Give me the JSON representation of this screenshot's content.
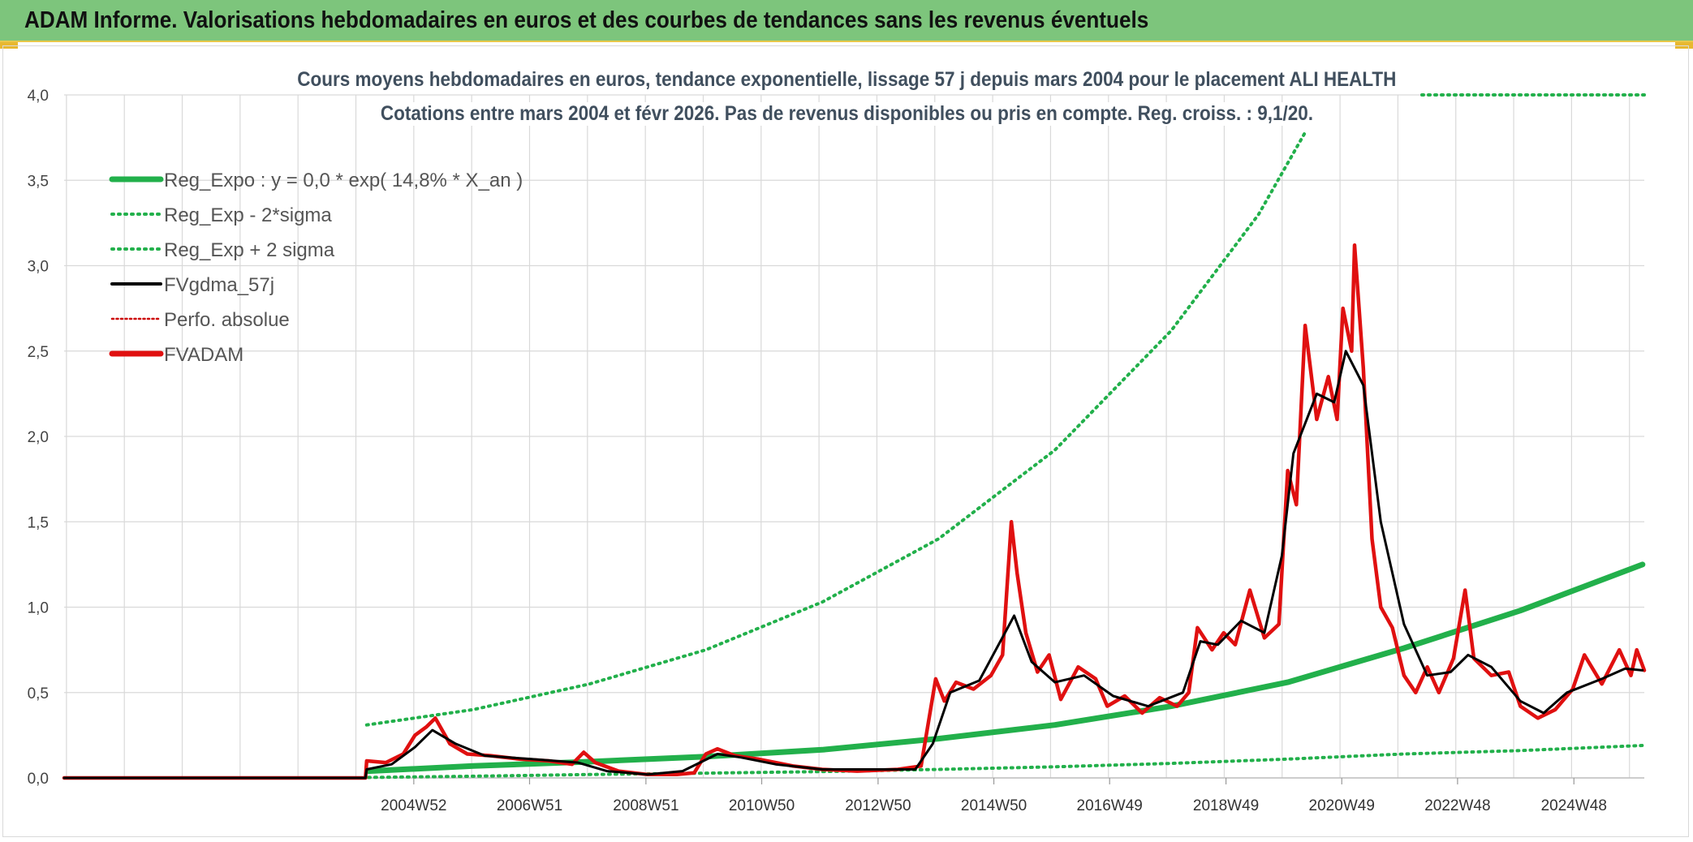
{
  "page_title": "ADAM Informe. Valorisations hebdomadaires en euros et des courbes de tendances sans les revenus éventuels",
  "chart_data": {
    "type": "line",
    "title": "Cours moyens hebdomadaires en euros, tendance exponentielle, lissage 57 j depuis mars 2004 pour le placement ALI HEALTH",
    "subtitle": "Cotations entre mars 2004 et févr 2026. Pas de revenus disponibles ou pris en compte. Reg. croiss. : 9,1/20.",
    "xlabel": "",
    "ylabel": "",
    "x_range": [
      1998.97,
      2026.13
    ],
    "ylim": [
      0,
      4
    ],
    "y_ticks": [
      "0,0",
      "0,5",
      "1,0",
      "1,5",
      "2,0",
      "2,5",
      "3,0",
      "3,5",
      "4,0"
    ],
    "y_tick_values": [
      0,
      0.5,
      1.0,
      1.5,
      2.0,
      2.5,
      3.0,
      3.5,
      4.0
    ],
    "x_ticks": [
      "2004W52",
      "2006W51",
      "2008W51",
      "2010W50",
      "2012W50",
      "2014W50",
      "2016W49",
      "2018W49",
      "2020W49",
      "2022W48",
      "2024W48"
    ],
    "x_tick_years": [
      2004.98,
      2006.97,
      2008.97,
      2010.96,
      2012.96,
      2014.95,
      2016.94,
      2018.94,
      2020.93,
      2022.92,
      2024.92
    ],
    "grid": true,
    "legend_position": "top-left",
    "series": [
      {
        "name": "Reg_Expo : y = 0,0 * exp( 14,8% *  X_an )",
        "color": "#22b04b",
        "style": "solid-thick",
        "points": [
          [
            2004.2,
            0.04
          ],
          [
            2006,
            0.07
          ],
          [
            2008,
            0.095
          ],
          [
            2010,
            0.125
          ],
          [
            2012,
            0.165
          ],
          [
            2014,
            0.23
          ],
          [
            2016,
            0.31
          ],
          [
            2018,
            0.42
          ],
          [
            2020,
            0.56
          ],
          [
            2022,
            0.76
          ],
          [
            2024,
            0.98
          ],
          [
            2026.1,
            1.25
          ]
        ]
      },
      {
        "name": "Reg_Exp - 2*sigma",
        "color": "#22b04b",
        "style": "dotted",
        "points": [
          [
            2004.2,
            0.003
          ],
          [
            2006,
            0.01
          ],
          [
            2008,
            0.02
          ],
          [
            2010,
            0.028
          ],
          [
            2012,
            0.037
          ],
          [
            2014,
            0.05
          ],
          [
            2016,
            0.065
          ],
          [
            2018,
            0.085
          ],
          [
            2020,
            0.11
          ],
          [
            2022,
            0.14
          ],
          [
            2024,
            0.16
          ],
          [
            2026.1,
            0.19
          ]
        ]
      },
      {
        "name": "Reg_Exp + 2 sigma",
        "color": "#22b04b",
        "style": "dotted",
        "points": [
          [
            2004.17,
            0.31
          ],
          [
            2006,
            0.4
          ],
          [
            2008,
            0.55
          ],
          [
            2010,
            0.75
          ],
          [
            2012,
            1.03
          ],
          [
            2014,
            1.4
          ],
          [
            2016,
            1.92
          ],
          [
            2018,
            2.62
          ],
          [
            2019.5,
            3.3
          ],
          [
            2020.3,
            3.78
          ]
        ]
      },
      {
        "name": "FVgdma_57j",
        "color": "#000000",
        "style": "solid",
        "points": [
          [
            1998.97,
            0
          ],
          [
            2004.15,
            0
          ],
          [
            2004.17,
            0.05
          ],
          [
            2004.6,
            0.08
          ],
          [
            2005.0,
            0.18
          ],
          [
            2005.3,
            0.28
          ],
          [
            2005.7,
            0.2
          ],
          [
            2006.2,
            0.13
          ],
          [
            2007,
            0.11
          ],
          [
            2007.8,
            0.09
          ],
          [
            2008.3,
            0.04
          ],
          [
            2009,
            0.02
          ],
          [
            2009.6,
            0.04
          ],
          [
            2010.2,
            0.14
          ],
          [
            2010.6,
            0.12
          ],
          [
            2011.2,
            0.08
          ],
          [
            2012,
            0.05
          ],
          [
            2013.6,
            0.05
          ],
          [
            2013.9,
            0.2
          ],
          [
            2014.2,
            0.5
          ],
          [
            2014.7,
            0.57
          ],
          [
            2015.3,
            0.95
          ],
          [
            2015.6,
            0.68
          ],
          [
            2016.0,
            0.56
          ],
          [
            2016.5,
            0.6
          ],
          [
            2017.0,
            0.48
          ],
          [
            2017.6,
            0.42
          ],
          [
            2018.2,
            0.5
          ],
          [
            2018.5,
            0.8
          ],
          [
            2018.8,
            0.78
          ],
          [
            2019.2,
            0.92
          ],
          [
            2019.6,
            0.85
          ],
          [
            2019.9,
            1.3
          ],
          [
            2020.1,
            1.9
          ],
          [
            2020.5,
            2.25
          ],
          [
            2020.8,
            2.2
          ],
          [
            2021.0,
            2.5
          ],
          [
            2021.3,
            2.3
          ],
          [
            2021.6,
            1.5
          ],
          [
            2022.0,
            0.9
          ],
          [
            2022.4,
            0.6
          ],
          [
            2022.8,
            0.62
          ],
          [
            2023.1,
            0.72
          ],
          [
            2023.5,
            0.65
          ],
          [
            2024.0,
            0.45
          ],
          [
            2024.4,
            0.38
          ],
          [
            2024.8,
            0.5
          ],
          [
            2025.4,
            0.58
          ],
          [
            2025.8,
            0.64
          ],
          [
            2026.1,
            0.63
          ]
        ]
      },
      {
        "name": "Perfo. absolue",
        "color": "#cc0000",
        "style": "dotted",
        "points": []
      },
      {
        "name": "FVADAM",
        "color": "#e01010",
        "style": "solid-thick",
        "points": [
          [
            1998.97,
            0
          ],
          [
            2004.15,
            0
          ],
          [
            2004.17,
            0.1
          ],
          [
            2004.5,
            0.09
          ],
          [
            2004.8,
            0.14
          ],
          [
            2005.0,
            0.25
          ],
          [
            2005.2,
            0.3
          ],
          [
            2005.35,
            0.35
          ],
          [
            2005.6,
            0.2
          ],
          [
            2005.9,
            0.14
          ],
          [
            2006.3,
            0.13
          ],
          [
            2006.8,
            0.11
          ],
          [
            2007.3,
            0.1
          ],
          [
            2007.7,
            0.08
          ],
          [
            2007.9,
            0.15
          ],
          [
            2008.1,
            0.09
          ],
          [
            2008.5,
            0.04
          ],
          [
            2009.0,
            0.02
          ],
          [
            2009.5,
            0.02
          ],
          [
            2009.8,
            0.03
          ],
          [
            2010.0,
            0.14
          ],
          [
            2010.2,
            0.17
          ],
          [
            2010.5,
            0.13
          ],
          [
            2010.9,
            0.11
          ],
          [
            2011.5,
            0.07
          ],
          [
            2012.0,
            0.05
          ],
          [
            2012.6,
            0.04
          ],
          [
            2013.3,
            0.05
          ],
          [
            2013.7,
            0.07
          ],
          [
            2013.95,
            0.58
          ],
          [
            2014.1,
            0.45
          ],
          [
            2014.3,
            0.56
          ],
          [
            2014.6,
            0.52
          ],
          [
            2014.9,
            0.6
          ],
          [
            2015.1,
            0.72
          ],
          [
            2015.25,
            1.5
          ],
          [
            2015.35,
            1.2
          ],
          [
            2015.5,
            0.85
          ],
          [
            2015.7,
            0.62
          ],
          [
            2015.9,
            0.72
          ],
          [
            2016.1,
            0.46
          ],
          [
            2016.4,
            0.65
          ],
          [
            2016.7,
            0.58
          ],
          [
            2016.9,
            0.42
          ],
          [
            2017.2,
            0.48
          ],
          [
            2017.5,
            0.38
          ],
          [
            2017.8,
            0.47
          ],
          [
            2018.1,
            0.42
          ],
          [
            2018.3,
            0.5
          ],
          [
            2018.45,
            0.88
          ],
          [
            2018.7,
            0.75
          ],
          [
            2018.9,
            0.85
          ],
          [
            2019.1,
            0.78
          ],
          [
            2019.35,
            1.1
          ],
          [
            2019.6,
            0.82
          ],
          [
            2019.85,
            0.9
          ],
          [
            2020.0,
            1.8
          ],
          [
            2020.15,
            1.6
          ],
          [
            2020.3,
            2.65
          ],
          [
            2020.5,
            2.1
          ],
          [
            2020.7,
            2.35
          ],
          [
            2020.85,
            2.1
          ],
          [
            2020.95,
            2.75
          ],
          [
            2021.1,
            2.5
          ],
          [
            2021.15,
            3.12
          ],
          [
            2021.3,
            2.4
          ],
          [
            2021.45,
            1.4
          ],
          [
            2021.6,
            1.0
          ],
          [
            2021.8,
            0.88
          ],
          [
            2022.0,
            0.6
          ],
          [
            2022.2,
            0.5
          ],
          [
            2022.4,
            0.65
          ],
          [
            2022.6,
            0.5
          ],
          [
            2022.85,
            0.7
          ],
          [
            2023.05,
            1.1
          ],
          [
            2023.2,
            0.7
          ],
          [
            2023.5,
            0.6
          ],
          [
            2023.8,
            0.62
          ],
          [
            2024.0,
            0.42
          ],
          [
            2024.3,
            0.35
          ],
          [
            2024.6,
            0.4
          ],
          [
            2024.9,
            0.52
          ],
          [
            2025.1,
            0.72
          ],
          [
            2025.4,
            0.55
          ],
          [
            2025.7,
            0.75
          ],
          [
            2025.9,
            0.6
          ],
          [
            2026.0,
            0.75
          ],
          [
            2026.13,
            0.63
          ]
        ]
      }
    ]
  },
  "colors": {
    "banner": "#7dc57c",
    "regression": "#22b04b",
    "price": "#e01010",
    "smoothed": "#000000",
    "perfo": "#cc0000",
    "grid": "#d9d9d9"
  }
}
